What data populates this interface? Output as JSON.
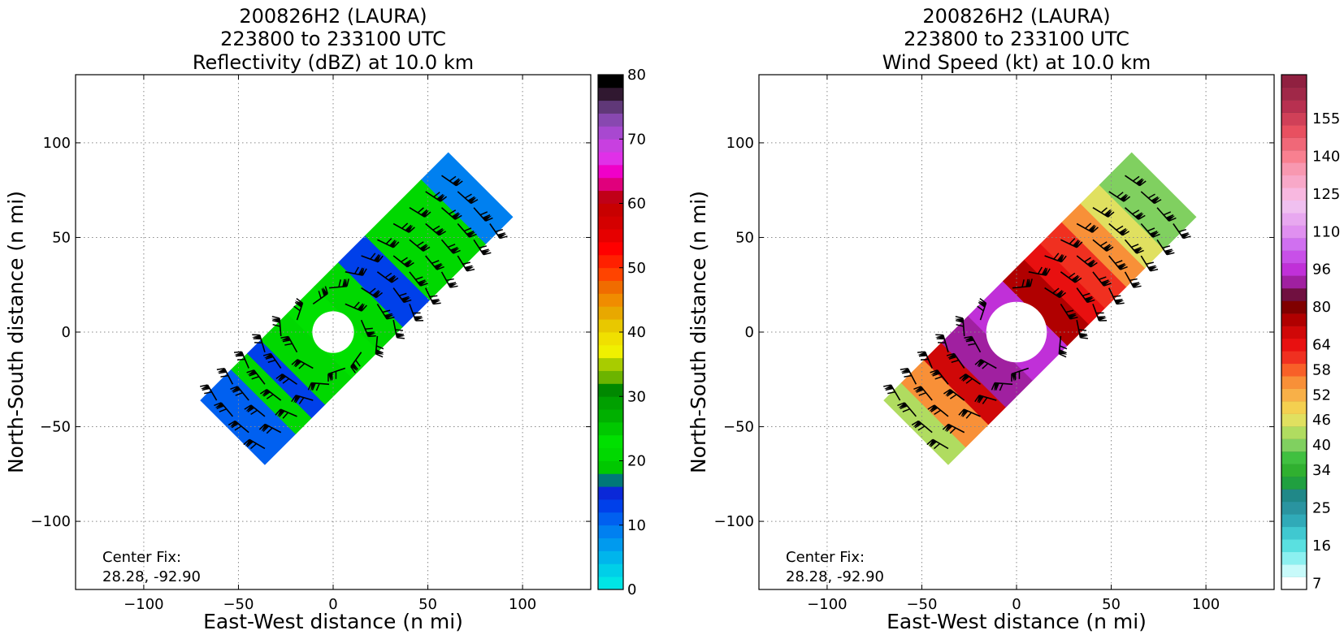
{
  "chart_data": [
    {
      "type": "heatmap",
      "title_lines": [
        "200826H2 (LAURA)",
        "223800 to 233100 UTC",
        "Reflectivity (dBZ) at 10.0 km"
      ],
      "xlabel": "East-West distance (n mi)",
      "ylabel": "North-South distance (n mi)",
      "xlim": [
        -136,
        136
      ],
      "ylim": [
        -136,
        136
      ],
      "xticks": [
        -100,
        -50,
        0,
        50,
        100
      ],
      "yticks": [
        -100,
        -50,
        0,
        50,
        100
      ],
      "grid": true,
      "annotation_lines": [
        "Center Fix:",
        "28.28, -92.90"
      ],
      "colorbar": {
        "min": 0,
        "max": 80,
        "ticks": [
          0,
          10,
          20,
          30,
          40,
          50,
          60,
          70,
          80
        ],
        "colors": [
          "#00e5e5",
          "#00cfe8",
          "#00b5ec",
          "#009aee",
          "#0080f0",
          "#0060f0",
          "#0040ea",
          "#0a28d8",
          "#007878",
          "#00c800",
          "#00d800",
          "#00e000",
          "#00c800",
          "#00b000",
          "#00a000",
          "#008800",
          "#6cb400",
          "#a8cc00",
          "#f0f000",
          "#f0e000",
          "#e8c800",
          "#e8a800",
          "#f08c00",
          "#f06c00",
          "#ff4400",
          "#ff2000",
          "#ff0000",
          "#e60000",
          "#d40000",
          "#c80000",
          "#c00018",
          "#e0007c",
          "#f000c8",
          "#e030e8",
          "#c840e0",
          "#a848d0",
          "#8848b0",
          "#603878",
          "#301830",
          "#000000"
        ]
      },
      "field": {
        "swath_axis_deg": 45,
        "swath_from_center": [
          -75,
          110
        ],
        "swath_half_width": 24,
        "eye_radius": 11,
        "bands": [
          {
            "s_range": [
              -75,
              -52
            ],
            "value": 10
          },
          {
            "s_range": [
              -52,
              -40
            ],
            "value": 20
          },
          {
            "s_range": [
              -40,
              -30
            ],
            "value": 12
          },
          {
            "s_range": [
              -30,
              -10
            ],
            "value": 20
          },
          {
            "s_range": [
              -10,
              10
            ],
            "value": 22
          },
          {
            "s_range": [
              10,
              28
            ],
            "value": 20
          },
          {
            "s_range": [
              28,
              48
            ],
            "value": 12
          },
          {
            "s_range": [
              48,
              70
            ],
            "value": 21
          },
          {
            "s_range": [
              70,
              90
            ],
            "value": 20
          },
          {
            "s_range": [
              90,
              110
            ],
            "value": 8
          }
        ]
      }
    },
    {
      "type": "heatmap",
      "title_lines": [
        "200826H2 (LAURA)",
        "223800 to 233100 UTC",
        "Wind Speed (kt) at 10.0 km"
      ],
      "xlabel": "East-West distance (n mi)",
      "ylabel": "North-South distance (n mi)",
      "xlim": [
        -136,
        136
      ],
      "ylim": [
        -136,
        136
      ],
      "xticks": [
        -100,
        -50,
        0,
        50,
        100
      ],
      "yticks": [
        -100,
        -50,
        0,
        50,
        100
      ],
      "grid": true,
      "annotation_lines": [
        "Center Fix:",
        "28.28, -92.90"
      ],
      "colorbar": {
        "tick_labels": [
          "7",
          "16",
          "25",
          "34",
          "40",
          "46",
          "52",
          "58",
          "64",
          "80",
          "96",
          "110",
          "125",
          "140",
          "155"
        ],
        "tick_bins": [
          0,
          3,
          6,
          9,
          11,
          13,
          15,
          17,
          19,
          22,
          25,
          28,
          31,
          34,
          37
        ],
        "colors": [
          "#ffffff",
          "#c8fafa",
          "#8cf0f0",
          "#5ae0e0",
          "#40c8d0",
          "#30aab8",
          "#2a94a0",
          "#208888",
          "#20a040",
          "#30b030",
          "#40c040",
          "#80d060",
          "#b0dc60",
          "#e0e060",
          "#f4d050",
          "#f8b048",
          "#f89038",
          "#f86028",
          "#f03020",
          "#e81010",
          "#d00808",
          "#b00000",
          "#800000",
          "#701040",
          "#a020a0",
          "#c030d8",
          "#c850e8",
          "#d070f0",
          "#e090f0",
          "#e8a8f0",
          "#f0c0f0",
          "#f8b8e0",
          "#f8a8c8",
          "#f898b0",
          "#f88090",
          "#f06878",
          "#e85060",
          "#d04058",
          "#b83050",
          "#a02848",
          "#902040"
        ]
      },
      "field": {
        "swath_axis_deg": 45,
        "swath_from_center": [
          -75,
          110
        ],
        "swath_half_width": 24,
        "eye_radius": 16,
        "bands": [
          {
            "s_range": [
              -75,
              -62
            ],
            "value": 44
          },
          {
            "s_range": [
              -62,
              -45
            ],
            "value": 56
          },
          {
            "s_range": [
              -45,
              -32
            ],
            "value": 70
          },
          {
            "s_range": [
              -32,
              -12
            ],
            "value": 88
          },
          {
            "s_range": [
              -12,
              14
            ],
            "value": 95
          },
          {
            "s_range": [
              14,
              30
            ],
            "value": 76
          },
          {
            "s_range": [
              30,
              42
            ],
            "value": 66
          },
          {
            "s_range": [
              42,
              58
            ],
            "value": 62
          },
          {
            "s_range": [
              58,
              72
            ],
            "value": 56
          },
          {
            "s_range": [
              72,
              86
            ],
            "value": 46
          },
          {
            "s_range": [
              86,
              110
            ],
            "value": 40
          }
        ]
      }
    }
  ]
}
